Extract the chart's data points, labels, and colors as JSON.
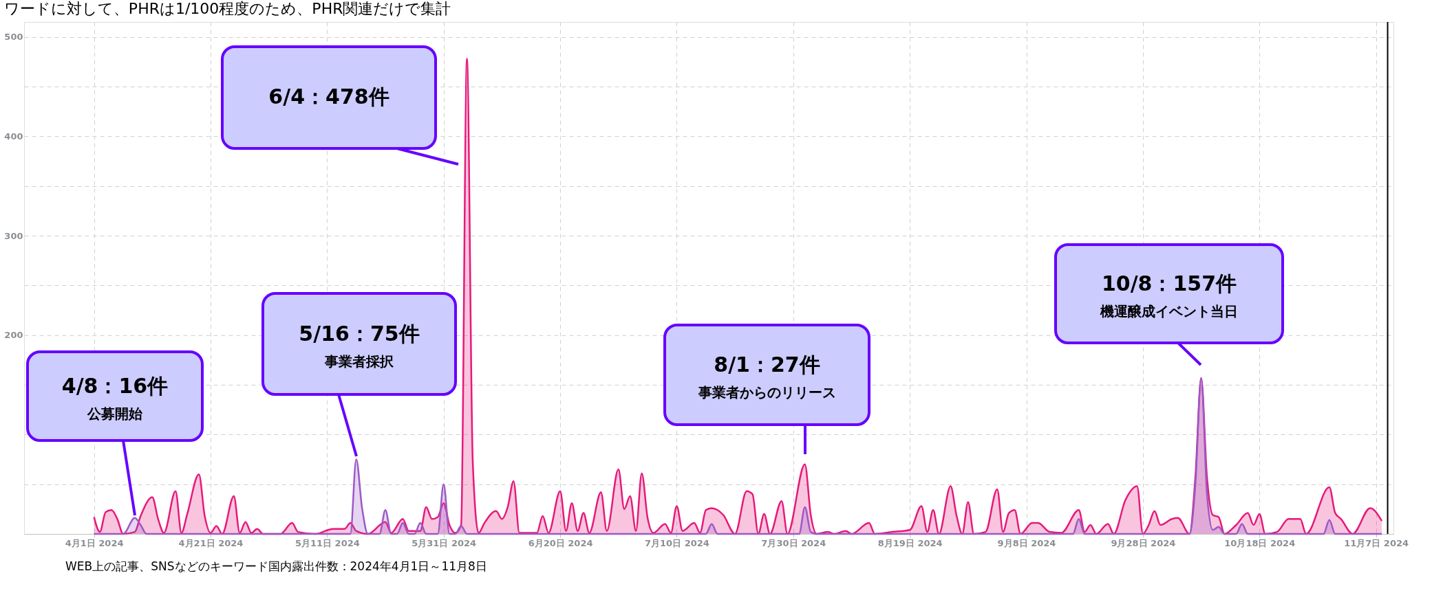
{
  "chart_data": {
    "type": "area",
    "title": "ワードに対して、PHRは1/100程度のため、PHR関連だけで集計",
    "annotations": [
      "WEB上の記事、SNSなどのキーワード国内露出件数：2024年4月1日～11月8日",
      "4/8：16件",
      "公募開始",
      "5/16：75件",
      "事業者採択",
      "6/4：478件",
      "8/1：27件",
      "事業者からのリリース",
      "10/8：157件",
      "機運醸成イベント当日"
    ],
    "xlim": [
      "2024-03-20",
      "2024-11-10"
    ],
    "xticks": [
      {
        "value": "2024-04-01",
        "label": "4月1日 2024"
      },
      {
        "value": "2024-04-21",
        "label": "4月21日 2024"
      },
      {
        "value": "2024-05-11",
        "label": "5月11日 2024"
      },
      {
        "value": "2024-05-31",
        "label": "5月31日 2024"
      },
      {
        "value": "2024-06-20",
        "label": "6月20日 2024"
      },
      {
        "value": "2024-07-10",
        "label": "7月10日 2024"
      },
      {
        "value": "2024-07-30",
        "label": "7月30日 2024"
      },
      {
        "value": "2024-08-19",
        "label": "8月19日 2024"
      },
      {
        "value": "2024-09-08",
        "label": "9月8日 2024"
      },
      {
        "value": "2024-09-28",
        "label": "9月28日 2024"
      },
      {
        "value": "2024-10-18",
        "label": "10月18日 2024"
      },
      {
        "value": "2024-11-07",
        "label": "11月7日 2024"
      }
    ],
    "ylim": [
      0,
      515
    ],
    "yticks": [
      {
        "value": 0,
        "label": null
      },
      {
        "value": 50,
        "label": null
      },
      {
        "value": 100,
        "label": null
      },
      {
        "value": 150,
        "label": null
      },
      200,
      {
        "value": 250,
        "label": null
      },
      300,
      {
        "value": 350,
        "label": null
      },
      400,
      {
        "value": 450,
        "label": null
      },
      500
    ],
    "grid": true,
    "ref_lines": [
      {
        "axis": "x",
        "value": "2024-11-09",
        "color": "#000000"
      }
    ],
    "series": [
      {
        "color": "#e6197a",
        "x": [
          "2024-04-01",
          "2024-04-02",
          "2024-04-03",
          "2024-04-04",
          "2024-04-05",
          "2024-04-06",
          "2024-04-08",
          "2024-04-09",
          "2024-04-11",
          "2024-04-12",
          "2024-04-13",
          "2024-04-15",
          "2024-04-16",
          "2024-04-17",
          "2024-04-19",
          "2024-04-20",
          "2024-04-21",
          "2024-04-22",
          "2024-04-23",
          "2024-04-25",
          "2024-04-26",
          "2024-04-27",
          "2024-04-28",
          "2024-04-29",
          "2024-04-30",
          "2024-05-03",
          "2024-05-05",
          "2024-05-06",
          "2024-05-09",
          "2024-05-12",
          "2024-05-14",
          "2024-05-15",
          "2024-05-16",
          "2024-05-18",
          "2024-05-21",
          "2024-05-22",
          "2024-05-24",
          "2024-05-25",
          "2024-05-27",
          "2024-05-28",
          "2024-05-29",
          "2024-05-30",
          "2024-05-31",
          "2024-06-01",
          "2024-06-02",
          "2024-06-03",
          "2024-06-04",
          "2024-06-05",
          "2024-06-06",
          "2024-06-07",
          "2024-06-09",
          "2024-06-10",
          "2024-06-11",
          "2024-06-12",
          "2024-06-13",
          "2024-06-16",
          "2024-06-17",
          "2024-06-18",
          "2024-06-20",
          "2024-06-21",
          "2024-06-22",
          "2024-06-23",
          "2024-06-24",
          "2024-06-25",
          "2024-06-27",
          "2024-06-28",
          "2024-06-30",
          "2024-07-01",
          "2024-07-02",
          "2024-07-03",
          "2024-07-04",
          "2024-07-05",
          "2024-07-06",
          "2024-07-08",
          "2024-07-09",
          "2024-07-10",
          "2024-07-11",
          "2024-07-13",
          "2024-07-14",
          "2024-07-15",
          "2024-07-16",
          "2024-07-17",
          "2024-07-18",
          "2024-07-20",
          "2024-07-22",
          "2024-07-23",
          "2024-07-24",
          "2024-07-25",
          "2024-07-26",
          "2024-07-28",
          "2024-07-29",
          "2024-08-01",
          "2024-08-02",
          "2024-08-03",
          "2024-08-05",
          "2024-08-06",
          "2024-08-08",
          "2024-08-09",
          "2024-08-12",
          "2024-08-13",
          "2024-08-16",
          "2024-08-19",
          "2024-08-21",
          "2024-08-22",
          "2024-08-23",
          "2024-08-24",
          "2024-08-26",
          "2024-08-27",
          "2024-08-28",
          "2024-08-29",
          "2024-08-30",
          "2024-09-01",
          "2024-09-03",
          "2024-09-04",
          "2024-09-05",
          "2024-09-06",
          "2024-09-07",
          "2024-09-09",
          "2024-09-10",
          "2024-09-12",
          "2024-09-14",
          "2024-09-17",
          "2024-09-18",
          "2024-09-19",
          "2024-09-20",
          "2024-09-22",
          "2024-09-23",
          "2024-09-25",
          "2024-09-27",
          "2024-09-28",
          "2024-09-29",
          "2024-09-30",
          "2024-10-01",
          "2024-10-03",
          "2024-10-04",
          "2024-10-06",
          "2024-10-07",
          "2024-10-08",
          "2024-10-09",
          "2024-10-10",
          "2024-10-11",
          "2024-10-12",
          "2024-10-14",
          "2024-10-16",
          "2024-10-17",
          "2024-10-18",
          "2024-10-19",
          "2024-10-21",
          "2024-10-23",
          "2024-10-24",
          "2024-10-25",
          "2024-10-26",
          "2024-10-30",
          "2024-10-31",
          "2024-11-01",
          "2024-11-03",
          "2024-11-06",
          "2024-11-08"
        ],
        "values": [
          17,
          2,
          22,
          24,
          15,
          0,
          2,
          18,
          37,
          15,
          1,
          43,
          1,
          20,
          60,
          18,
          1,
          8,
          0,
          38,
          1,
          12,
          1,
          5,
          0,
          0,
          11,
          2,
          0,
          5,
          5,
          11,
          3,
          0,
          12,
          1,
          15,
          3,
          3,
          27,
          15,
          17,
          31,
          9,
          1,
          9,
          478,
          72,
          1,
          11,
          23,
          15,
          27,
          53,
          1,
          1,
          18,
          1,
          43,
          3,
          31,
          3,
          21,
          1,
          42,
          3,
          65,
          25,
          38,
          3,
          61,
          16,
          1,
          10,
          1,
          28,
          3,
          11,
          1,
          24,
          26,
          24,
          19,
          0,
          43,
          40,
          0,
          20,
          0,
          33,
          0,
          70,
          19,
          0,
          2,
          0,
          3,
          0,
          11,
          0,
          2,
          4,
          28,
          2,
          24,
          0,
          48,
          19,
          0,
          32,
          0,
          2,
          45,
          2,
          21,
          24,
          0,
          11,
          11,
          2,
          1,
          24,
          2,
          9,
          0,
          10,
          0,
          34,
          48,
          0,
          9,
          23,
          9,
          15,
          16,
          0,
          57,
          157,
          57,
          19,
          17,
          0,
          9,
          21,
          9,
          20,
          0,
          2,
          15,
          15,
          15,
          0,
          47,
          21,
          15,
          0,
          26,
          13
        ]
      },
      {
        "color": "#9b59c6",
        "x": [
          "2024-04-01",
          "2024-04-06",
          "2024-04-08",
          "2024-04-09",
          "2024-04-10",
          "2024-05-15",
          "2024-05-16",
          "2024-05-17",
          "2024-05-18",
          "2024-05-20",
          "2024-05-21",
          "2024-05-22",
          "2024-05-23",
          "2024-05-24",
          "2024-05-25",
          "2024-05-26",
          "2024-05-27",
          "2024-05-28",
          "2024-05-30",
          "2024-05-31",
          "2024-06-01",
          "2024-06-02",
          "2024-06-03",
          "2024-06-04",
          "2024-07-15",
          "2024-07-16",
          "2024-07-17",
          "2024-07-31",
          "2024-08-01",
          "2024-08-02",
          "2024-08-03",
          "2024-09-16",
          "2024-09-17",
          "2024-09-18",
          "2024-10-06",
          "2024-10-07",
          "2024-10-08",
          "2024-10-09",
          "2024-10-10",
          "2024-10-11",
          "2024-10-12",
          "2024-10-14",
          "2024-10-15",
          "2024-10-16",
          "2024-10-29",
          "2024-10-30",
          "2024-10-31",
          "2024-11-08"
        ],
        "values": [
          0,
          0,
          16,
          9,
          0,
          0,
          75,
          26,
          0,
          0,
          24,
          0,
          0,
          11,
          0,
          0,
          11,
          0,
          0,
          50,
          0,
          0,
          8,
          0,
          0,
          10,
          0,
          0,
          27,
          2,
          0,
          0,
          15,
          0,
          0,
          49,
          157,
          40,
          4,
          7,
          0,
          0,
          10,
          0,
          0,
          14,
          0,
          0
        ]
      }
    ]
  }
}
